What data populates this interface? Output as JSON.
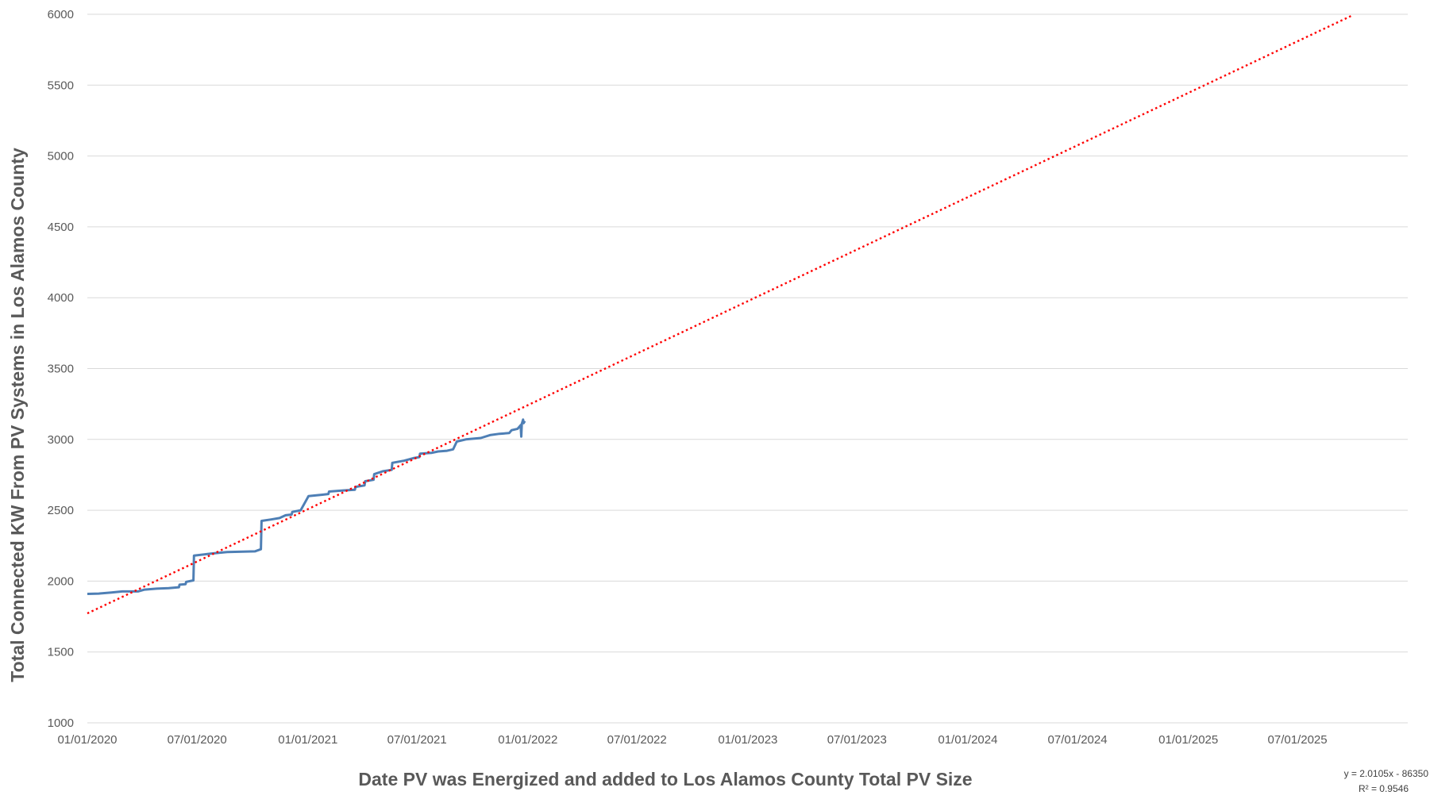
{
  "chart_data": {
    "type": "line",
    "title": "",
    "xlabel": "Date PV was Energized and added to Los Alamos County Total PV Size",
    "ylabel": "Total Connected KW From PV Systems  in Los Alamos County",
    "ylim": [
      1000,
      6000
    ],
    "xlim": [
      "2020-01-01",
      "2025-12-31"
    ],
    "yticks": [
      1000,
      1500,
      2000,
      2500,
      3000,
      3500,
      4000,
      4500,
      5000,
      5500,
      6000
    ],
    "xticks": [
      {
        "date": "2020-01-01",
        "label": "01/01/2020"
      },
      {
        "date": "2020-07-01",
        "label": "07/01/2020"
      },
      {
        "date": "2021-01-01",
        "label": "01/01/2021"
      },
      {
        "date": "2021-07-01",
        "label": "07/01/2021"
      },
      {
        "date": "2022-01-01",
        "label": "01/01/2022"
      },
      {
        "date": "2022-07-01",
        "label": "07/01/2022"
      },
      {
        "date": "2023-01-01",
        "label": "01/01/2023"
      },
      {
        "date": "2023-07-01",
        "label": "07/01/2023"
      },
      {
        "date": "2024-01-01",
        "label": "01/01/2024"
      },
      {
        "date": "2024-07-01",
        "label": "07/01/2024"
      },
      {
        "date": "2025-01-01",
        "label": "01/01/2025"
      },
      {
        "date": "2025-07-01",
        "label": "07/01/2025"
      }
    ],
    "grid": "horizontal",
    "series": [
      {
        "color": "#4e7fb5",
        "style": "solid",
        "points": [
          {
            "x": "2020-01-01",
            "y": 1910
          },
          {
            "x": "2020-01-20",
            "y": 1912
          },
          {
            "x": "2020-02-10",
            "y": 1920
          },
          {
            "x": "2020-02-28",
            "y": 1927
          },
          {
            "x": "2020-03-25",
            "y": 1927
          },
          {
            "x": "2020-04-05",
            "y": 1940
          },
          {
            "x": "2020-04-25",
            "y": 1947
          },
          {
            "x": "2020-05-15",
            "y": 1950
          },
          {
            "x": "2020-06-01",
            "y": 1957
          },
          {
            "x": "2020-06-02",
            "y": 1975
          },
          {
            "x": "2020-06-12",
            "y": 1978
          },
          {
            "x": "2020-06-13",
            "y": 1995
          },
          {
            "x": "2020-06-25",
            "y": 2005
          },
          {
            "x": "2020-06-26",
            "y": 2180
          },
          {
            "x": "2020-07-25",
            "y": 2195
          },
          {
            "x": "2020-08-20",
            "y": 2205
          },
          {
            "x": "2020-10-05",
            "y": 2210
          },
          {
            "x": "2020-10-15",
            "y": 2225
          },
          {
            "x": "2020-10-16",
            "y": 2425
          },
          {
            "x": "2020-11-01",
            "y": 2435
          },
          {
            "x": "2020-11-15",
            "y": 2445
          },
          {
            "x": "2020-11-25",
            "y": 2465
          },
          {
            "x": "2020-12-05",
            "y": 2470
          },
          {
            "x": "2020-12-06",
            "y": 2488
          },
          {
            "x": "2020-12-20",
            "y": 2500
          },
          {
            "x": "2021-01-02",
            "y": 2600
          },
          {
            "x": "2021-01-25",
            "y": 2610
          },
          {
            "x": "2021-02-04",
            "y": 2615
          },
          {
            "x": "2021-02-05",
            "y": 2632
          },
          {
            "x": "2021-03-01",
            "y": 2640
          },
          {
            "x": "2021-03-20",
            "y": 2645
          },
          {
            "x": "2021-03-21",
            "y": 2665
          },
          {
            "x": "2021-04-05",
            "y": 2675
          },
          {
            "x": "2021-04-06",
            "y": 2705
          },
          {
            "x": "2021-04-20",
            "y": 2715
          },
          {
            "x": "2021-04-21",
            "y": 2755
          },
          {
            "x": "2021-05-05",
            "y": 2775
          },
          {
            "x": "2021-05-20",
            "y": 2785
          },
          {
            "x": "2021-05-21",
            "y": 2835
          },
          {
            "x": "2021-06-10",
            "y": 2850
          },
          {
            "x": "2021-06-25",
            "y": 2868
          },
          {
            "x": "2021-07-05",
            "y": 2875
          },
          {
            "x": "2021-07-06",
            "y": 2900
          },
          {
            "x": "2021-07-25",
            "y": 2905
          },
          {
            "x": "2021-08-05",
            "y": 2915
          },
          {
            "x": "2021-08-20",
            "y": 2920
          },
          {
            "x": "2021-08-30",
            "y": 2930
          },
          {
            "x": "2021-09-05",
            "y": 2985
          },
          {
            "x": "2021-09-20",
            "y": 3000
          },
          {
            "x": "2021-10-15",
            "y": 3010
          },
          {
            "x": "2021-10-30",
            "y": 3030
          },
          {
            "x": "2021-11-15",
            "y": 3040
          },
          {
            "x": "2021-12-01",
            "y": 3045
          },
          {
            "x": "2021-12-05",
            "y": 3065
          },
          {
            "x": "2021-12-15",
            "y": 3075
          },
          {
            "x": "2021-12-18",
            "y": 3090
          },
          {
            "x": "2021-12-20",
            "y": 3100
          },
          {
            "x": "2021-12-21",
            "y": 3020
          },
          {
            "x": "2021-12-22",
            "y": 3110
          },
          {
            "x": "2021-12-24",
            "y": 3140
          },
          {
            "x": "2021-12-25",
            "y": 3115
          },
          {
            "x": "2021-12-27",
            "y": 3130
          }
        ]
      },
      {
        "color": "#ff0000",
        "style": "dotted",
        "trendline": "linear",
        "equation": "y = 2.0105x - 86350",
        "r2_label": "R² = 0.9546",
        "slope_per_day": 2.0105,
        "intercept": -86350,
        "x_start": "2020-01-01",
        "x_end": "2025-10-01"
      }
    ]
  }
}
